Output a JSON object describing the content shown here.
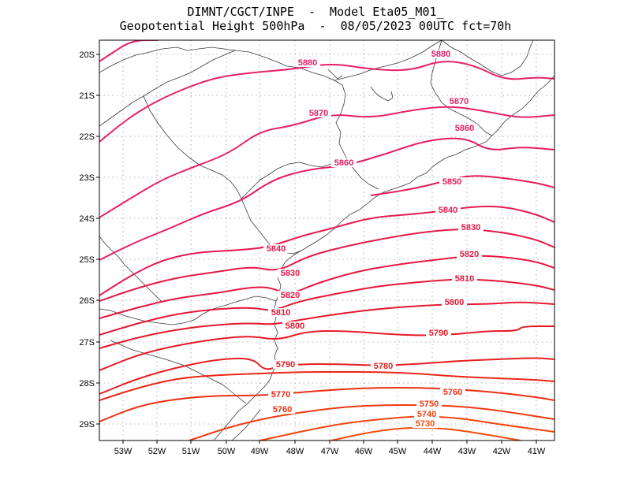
{
  "title": {
    "line1": "DIMNT/CGCT/INPE  -  Model Eta05_M01_",
    "line2": "Geopotential Height 500hPa  -  08/05/2023 00UTC fct=70h"
  },
  "axes": {
    "lat_labels": [
      "20S",
      "21S",
      "22S",
      "23S",
      "24S",
      "25S",
      "26S",
      "27S",
      "28S",
      "29S"
    ],
    "lon_labels": [
      "53W",
      "52W",
      "51W",
      "50W",
      "49W",
      "48W",
      "47W",
      "46W",
      "45W",
      "44W",
      "43W",
      "42W",
      "41W"
    ]
  },
  "contours": [
    {
      "value": "5880",
      "color": "#e8206a",
      "labels": [
        "5880",
        "5880"
      ]
    },
    {
      "value": "5870",
      "color": "#e8206a",
      "labels": [
        "5870",
        "5870"
      ]
    },
    {
      "value": "5860",
      "color": "#e81c5e",
      "labels": [
        "5860",
        "5860"
      ]
    },
    {
      "value": "5850",
      "color": "#e81c58",
      "labels": [
        "5850"
      ]
    },
    {
      "value": "5840",
      "color": "#e61a50",
      "labels": [
        "5840",
        "5840"
      ]
    },
    {
      "value": "5830",
      "color": "#e61a48",
      "labels": [
        "5830",
        "5830"
      ]
    },
    {
      "value": "5820",
      "color": "#e61840",
      "labels": [
        "5820",
        "5820"
      ]
    },
    {
      "value": "5810",
      "color": "#e61838",
      "labels": [
        "5810",
        "5810"
      ]
    },
    {
      "value": "5800",
      "color": "#e61830",
      "labels": [
        "5800",
        "5800"
      ]
    },
    {
      "value": "5790",
      "color": "#e81a26",
      "labels": [
        "5790",
        "5790"
      ]
    },
    {
      "value": "5780",
      "color": "#e81e20",
      "labels": [
        "5780"
      ]
    },
    {
      "value": "5770",
      "color": "#ea2618",
      "labels": [
        "5770"
      ]
    },
    {
      "value": "5760",
      "color": "#ec3014",
      "labels": [
        "5760",
        "5760"
      ]
    },
    {
      "value": "5750",
      "color": "#ee3a12",
      "labels": [
        "5750"
      ]
    },
    {
      "value": "5740",
      "color": "#f04410",
      "labels": [
        "5740"
      ]
    },
    {
      "value": "5730",
      "color": "#f24e0e",
      "labels": [
        "5730"
      ]
    }
  ]
}
